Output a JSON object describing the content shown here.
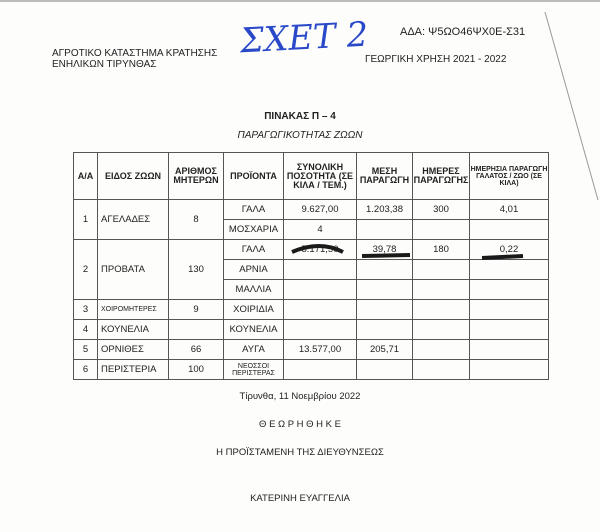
{
  "header": {
    "ada": "ΑΔΑ: Ψ5ΩΟ46ΨΧ0Ε-Σ31",
    "org_line1": "ΑΓΡΟΤΙΚΟ ΚΑΤΑΣΤΗΜΑ ΚΡΑΤΗΣΗΣ",
    "org_line2": "ΕΝΗΛΙΚΩΝ ΤΙΡΥΝΘΑΣ",
    "year": "ΓΕΩΡΓΙΚΗ ΧΡΗΣΗ 2021 - 2022",
    "handwritten": "ΣΧΕΤ 2",
    "table_title": "ΠΙΝΑΚΑΣ Π – 4",
    "table_subtitle": "ΠΑΡΑΓΩΓΙΚΟΤΗΤΑΣ  ΖΩΩΝ"
  },
  "table": {
    "headers": [
      "Α/Α",
      "ΕΙΔΟΣ ΖΩΩΝ",
      "ΑΡΙΘΜΟΣ ΜΗΤΕΡΩΝ",
      "ΠΡΟΪΟΝΤΑ",
      "ΣΥΝΟΛΙΚΗ ΠΟΣΟΤΗΤΑ (ΣΕ ΚΙΛΑ / ΤΕΜ.)",
      "ΜΕΣΗ ΠΑΡΑΓΩΓΗ",
      "ΗΜΕΡΕΣ ΠΑΡΑΓΩΓΗΣ",
      "ΗΜΕΡΗΣΙΑ ΠΑΡΑΓΩΓΗ ΓΑΛΑΤΟΣ / ΖΩΟ (ΣΕ ΚΙΛΑ)"
    ],
    "groups": [
      {
        "aa": "1",
        "kind": "ΑΓΕΛΑΔΕΣ",
        "mothers": "8",
        "rows": [
          {
            "product": "ΓΑΛΑ",
            "total": "9.627,00",
            "avg": "1.203,38",
            "days": "300",
            "daily": "4,01"
          },
          {
            "product": "ΜΟΣΧΑΡΙΑ",
            "total": "4",
            "avg": "",
            "days": "",
            "daily": ""
          }
        ]
      },
      {
        "aa": "2",
        "kind": "ΠΡΟΒΑΤΑ",
        "mothers": "130",
        "rows": [
          {
            "product": "ΓΑΛΑ",
            "total": "5.171,50",
            "avg": "39,78",
            "days": "180",
            "daily": "0,22"
          },
          {
            "product": "ΑΡΝΙΑ",
            "total": "",
            "avg": "",
            "days": "",
            "daily": ""
          },
          {
            "product": "ΜΑΛΛΙΑ",
            "total": "",
            "avg": "",
            "days": "",
            "daily": ""
          }
        ]
      },
      {
        "aa": "3",
        "kind": "ΧΟΙΡΟΜΗΤΕΡΕΣ",
        "mothers": "9",
        "rows": [
          {
            "product": "ΧΟΙΡΙΔΙΑ",
            "total": "",
            "avg": "",
            "days": "",
            "daily": ""
          }
        ]
      },
      {
        "aa": "4",
        "kind": "ΚΟΥΝΕΛΙΑ",
        "mothers": "",
        "rows": [
          {
            "product": "ΚΟΥΝΕΛΙΑ",
            "total": "",
            "avg": "",
            "days": "",
            "daily": ""
          }
        ]
      },
      {
        "aa": "5",
        "kind": "ΟΡΝΙΘΕΣ",
        "mothers": "66",
        "rows": [
          {
            "product": "ΑΥΓΑ",
            "total": "13.577,00",
            "avg": "205,71",
            "days": "",
            "daily": ""
          }
        ]
      },
      {
        "aa": "6",
        "kind": "ΠΕΡΙΣΤΕΡΙΑ",
        "mothers": "100",
        "rows": [
          {
            "product": "ΝΕΟΣΣΟΙ ΠΕΡΙΣΤΕΡΑΣ",
            "total": "",
            "avg": "",
            "days": "",
            "daily": ""
          }
        ]
      }
    ]
  },
  "footer": {
    "place_date": "Τίρυνθα, 11 Νοεμβρίου 2022",
    "seen": "Θ Ε Ω Ρ Η Θ Η Κ Ε",
    "role": "Η ΠΡΟΪΣΤΑΜΕΝΗ ΤΗΣ ΔΙΕΥΘΥΝΣΕΩΣ",
    "name": "ΚΑΤΕΡΙΝΗ ΕΥΑΓΓΕΛΙΑ"
  },
  "colors": {
    "ink": "#222222",
    "pen": "#2a49c8",
    "marker": "#1a1a1a"
  }
}
